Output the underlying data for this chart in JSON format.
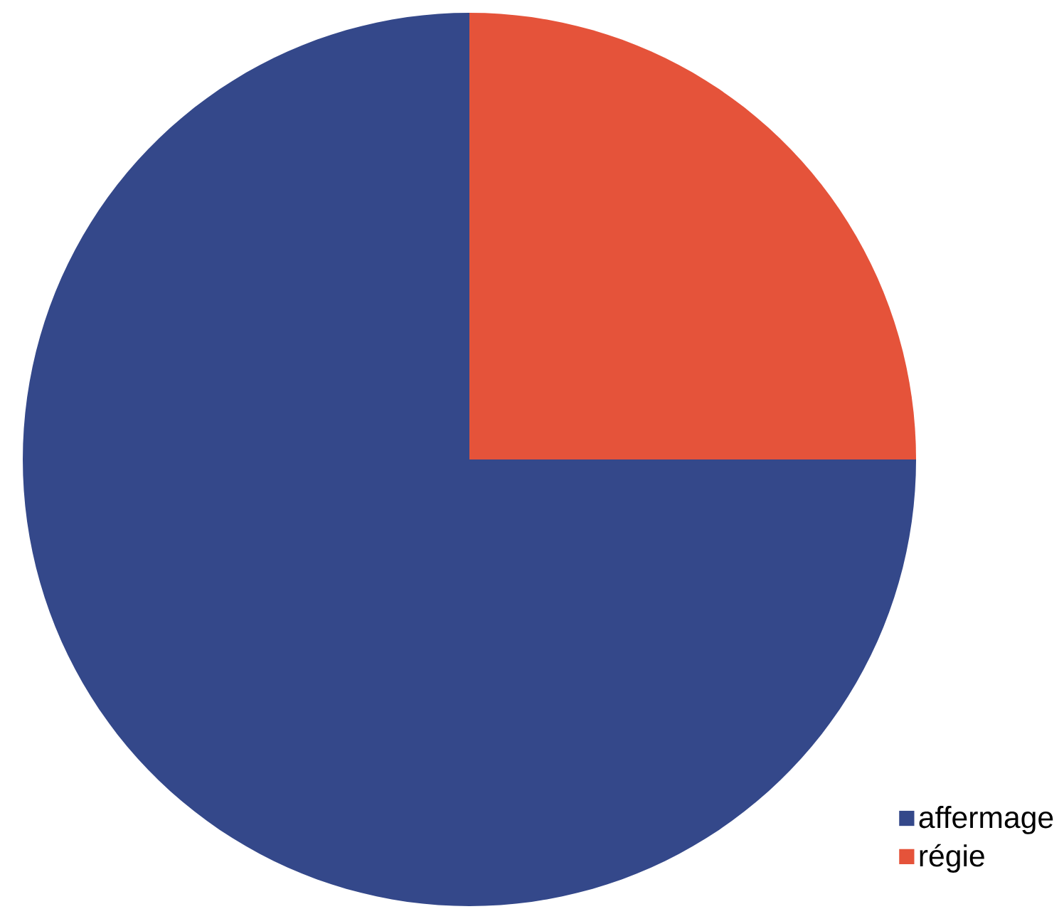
{
  "chart_data": {
    "type": "pie",
    "categories": [
      "affermage",
      "régie"
    ],
    "values": [
      75,
      25
    ],
    "colors": [
      "#34488a",
      "#e5533a"
    ],
    "legend": "bottom right"
  }
}
